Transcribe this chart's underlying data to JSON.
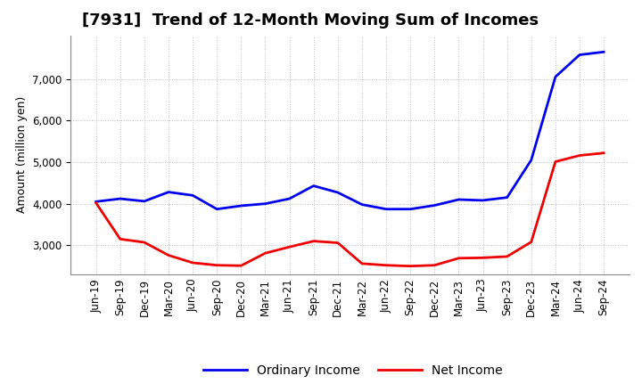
{
  "title": "[7931]  Trend of 12-Month Moving Sum of Incomes",
  "ylabel": "Amount (million yen)",
  "background_color": "#ffffff",
  "grid_color": "#bbbbbb",
  "x_labels": [
    "Jun-19",
    "Sep-19",
    "Dec-19",
    "Mar-20",
    "Jun-20",
    "Sep-20",
    "Dec-20",
    "Mar-21",
    "Jun-21",
    "Sep-21",
    "Dec-21",
    "Mar-22",
    "Jun-22",
    "Sep-22",
    "Dec-22",
    "Mar-23",
    "Jun-23",
    "Sep-23",
    "Dec-23",
    "Mar-24",
    "Jun-24",
    "Sep-24"
  ],
  "ordinary_income": [
    4050,
    4120,
    4060,
    4280,
    4200,
    3870,
    3950,
    4000,
    4120,
    4430,
    4270,
    3980,
    3870,
    3870,
    3960,
    4100,
    4080,
    4150,
    5050,
    7050,
    7580,
    7650
  ],
  "net_income": [
    4020,
    3150,
    3070,
    2760,
    2580,
    2520,
    2510,
    2810,
    2960,
    3100,
    3060,
    2560,
    2520,
    2500,
    2520,
    2690,
    2700,
    2730,
    3080,
    5010,
    5160,
    5220
  ],
  "ordinary_income_color": "#0000ee",
  "net_income_color": "#ee0000",
  "line_width": 2.0,
  "ylim": [
    2300,
    8050
  ],
  "yticks": [
    3000,
    4000,
    5000,
    6000,
    7000
  ],
  "legend_ordinary": "Ordinary Income",
  "legend_net": "Net Income",
  "title_fontsize": 13,
  "axis_fontsize": 9,
  "tick_fontsize": 8.5
}
